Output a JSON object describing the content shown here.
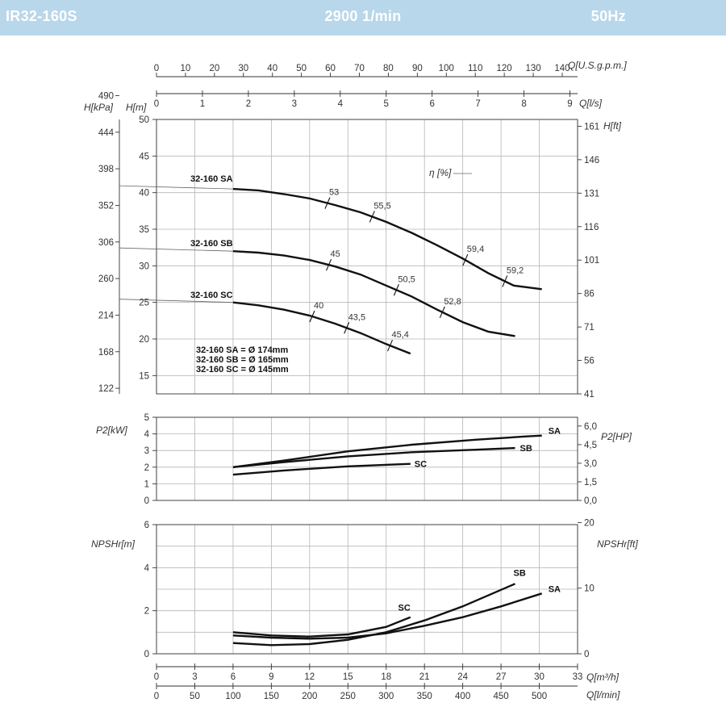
{
  "header": {
    "model": "IR32-160S",
    "speed": "2900 1/min",
    "frequency": "50Hz",
    "background_color": "#b9d7ea"
  },
  "chart_data": {
    "type": "line",
    "x_axes": {
      "usgpm": {
        "label": "Q[U.S.g.p.m.]",
        "ticks": [
          "0",
          "10",
          "20",
          "30",
          "40",
          "50",
          "60",
          "70",
          "80",
          "90",
          "100",
          "110",
          "120",
          "130",
          "140"
        ]
      },
      "ls": {
        "label": "Q[l/s]",
        "ticks": [
          "0",
          "1",
          "2",
          "3",
          "4",
          "5",
          "6",
          "7",
          "8",
          "9"
        ]
      },
      "m3h": {
        "label": "Q[m³/h]",
        "range": [
          0,
          33
        ],
        "ticks": [
          "0",
          "3",
          "6",
          "9",
          "12",
          "15",
          "18",
          "21",
          "24",
          "27",
          "30",
          "33"
        ]
      },
      "lmin": {
        "label": "Q[l/min]",
        "ticks": [
          "0",
          "50",
          "100",
          "150",
          "200",
          "250",
          "300",
          "350",
          "400",
          "450",
          "500"
        ]
      }
    },
    "head": {
      "ylabel_left_kpa": "H[kPa]",
      "ylabel_left_m": "H[m]",
      "ylabel_right": "H[ft]",
      "ylim": [
        12.5,
        50
      ],
      "ticks_m": [
        "15",
        "20",
        "25",
        "30",
        "35",
        "40",
        "45",
        "50"
      ],
      "ticks_kpa": [
        "122",
        "168",
        "214",
        "260",
        "306",
        "352",
        "398",
        "444",
        "490"
      ],
      "ticks_ft": [
        "41",
        "56",
        "71",
        "86",
        "101",
        "116",
        "131",
        "146",
        "161"
      ],
      "eta_label": "η [%]",
      "series": [
        {
          "name": "32-160 SA",
          "x": [
            6,
            8,
            10,
            12,
            14,
            16,
            18,
            20,
            22,
            24,
            26,
            28,
            30.2
          ],
          "y": [
            40.5,
            40.3,
            39.8,
            39.2,
            38.3,
            37.3,
            36.0,
            34.5,
            32.8,
            31.0,
            29.0,
            27.3,
            26.8
          ],
          "efficiency": [
            {
              "q": 13.4,
              "label": "53"
            },
            {
              "q": 16.9,
              "label": "55,5"
            },
            {
              "q": 24.2,
              "label": "59,4"
            },
            {
              "q": 27.3,
              "label": "59,2"
            }
          ]
        },
        {
          "name": "32-160 SB",
          "x": [
            6,
            8,
            10,
            12,
            14,
            16,
            18,
            20,
            22,
            24,
            26,
            28.1
          ],
          "y": [
            32.0,
            31.8,
            31.4,
            30.8,
            29.9,
            28.8,
            27.3,
            25.8,
            24.0,
            22.3,
            21.0,
            20.4
          ],
          "efficiency": [
            {
              "q": 13.5,
              "label": "45"
            },
            {
              "q": 18.8,
              "label": "50,5"
            },
            {
              "q": 22.4,
              "label": "52,8"
            }
          ]
        },
        {
          "name": "32-160 SC",
          "x": [
            6,
            8,
            10,
            12,
            14,
            16,
            18,
            19.9
          ],
          "y": [
            25.0,
            24.6,
            24.0,
            23.2,
            22.1,
            20.8,
            19.3,
            18.0
          ],
          "efficiency": [
            {
              "q": 12.2,
              "label": "40"
            },
            {
              "q": 14.9,
              "label": "43,5"
            },
            {
              "q": 18.3,
              "label": "45,4"
            }
          ]
        }
      ],
      "impeller_notes": [
        "32-160 SA = Ø 174mm",
        "32-160 SB = Ø 165mm",
        "32-160 SC = Ø 145mm"
      ]
    },
    "power": {
      "ylabel_left": "P2[kW]",
      "ylabel_right": "P2[HP]",
      "ylim": [
        0,
        5
      ],
      "ticks_kw": [
        "0",
        "1",
        "2",
        "3",
        "4",
        "5"
      ],
      "ticks_hp": [
        "0,0",
        "1,5",
        "3,0",
        "4,5",
        "6,0"
      ],
      "series": [
        {
          "name": "SA",
          "x": [
            6,
            10,
            15,
            20,
            25,
            29,
            30.2
          ],
          "y": [
            2.0,
            2.4,
            2.95,
            3.35,
            3.65,
            3.85,
            3.9
          ]
        },
        {
          "name": "SB",
          "x": [
            6,
            10,
            15,
            20,
            25,
            28.1
          ],
          "y": [
            2.0,
            2.3,
            2.65,
            2.9,
            3.05,
            3.15
          ]
        },
        {
          "name": "SC",
          "x": [
            6,
            10,
            15,
            19.9
          ],
          "y": [
            1.55,
            1.8,
            2.05,
            2.2
          ]
        }
      ]
    },
    "npsh": {
      "ylabel_left": "NPSHr[m]",
      "ylabel_right": "NPSHr[ft]",
      "ylim": [
        0,
        6
      ],
      "ticks_m": [
        "0",
        "2",
        "4",
        "6"
      ],
      "ticks_ft": [
        "0",
        "10",
        "20"
      ],
      "series": [
        {
          "name": "SA",
          "x": [
            6,
            9,
            12,
            15,
            18,
            21,
            24,
            27,
            30.2
          ],
          "y": [
            0.85,
            0.75,
            0.7,
            0.75,
            0.95,
            1.3,
            1.7,
            2.2,
            2.8
          ]
        },
        {
          "name": "SB",
          "x": [
            6,
            9,
            12,
            15,
            18,
            21,
            24,
            28.1
          ],
          "y": [
            0.5,
            0.4,
            0.45,
            0.65,
            1.0,
            1.55,
            2.2,
            3.25
          ]
        },
        {
          "name": "SC",
          "x": [
            6,
            9,
            12,
            15,
            18,
            19.9
          ],
          "y": [
            1.0,
            0.85,
            0.8,
            0.9,
            1.25,
            1.7
          ]
        }
      ]
    }
  }
}
